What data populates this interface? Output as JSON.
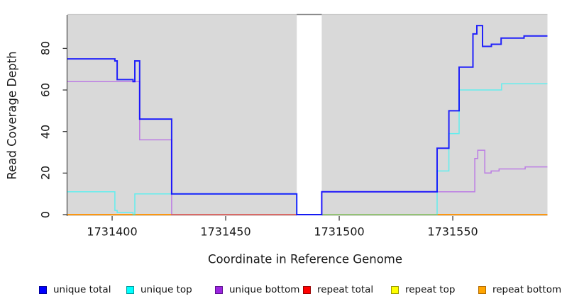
{
  "figure": {
    "x_axis_title": "Coordinate in Reference Genome",
    "y_axis_title": "Read Coverage Depth"
  },
  "chart_data": {
    "type": "line",
    "subtype": "step",
    "title": "",
    "xlabel": "Coordinate in Reference Genome",
    "ylabel": "Read Coverage Depth",
    "xlim": [
      1731380.3,
      1731591.7
    ],
    "ylim": [
      0,
      96.8
    ],
    "x_ticks": [
      1731400,
      1731450,
      1731500,
      1731550
    ],
    "y_ticks": [
      0,
      20,
      40,
      60,
      80
    ],
    "grid": false,
    "legend_position": "bottom",
    "panel_background": "#d9d9d9",
    "na_gap": {
      "x_start": 1731481.3,
      "x_end": 1731492.3,
      "fill": "#ffffff",
      "top_edge_color": "#8a8a8a"
    },
    "series": [
      {
        "name": "repeat total",
        "color": "#ff0000",
        "opacity": 0.7,
        "stroke_width": 1.3,
        "steps": [
          [
            1731380.3,
            0
          ]
        ]
      },
      {
        "name": "repeat top",
        "color": "#ffff00",
        "opacity": 0.85,
        "stroke_width": 1.3,
        "steps": [
          [
            1731380.3,
            0
          ]
        ]
      },
      {
        "name": "repeat bottom",
        "color": "#ff9100",
        "opacity": 1,
        "stroke_width": 1.7,
        "steps": [
          [
            1731380.3,
            0
          ]
        ]
      },
      {
        "name": "unique bottom",
        "color": "#a020f0",
        "opacity": 0.5,
        "stroke_width": 1.5,
        "steps": [
          [
            1731380.3,
            64
          ],
          [
            1731412.1,
            36
          ],
          [
            1731426.2,
            0
          ],
          [
            1731492.3,
            11
          ],
          [
            1731559.7,
            27
          ],
          [
            1731561.0,
            31
          ],
          [
            1731564.1,
            20
          ],
          [
            1731566.9,
            21
          ],
          [
            1731570.4,
            22
          ],
          [
            1731581.9,
            23
          ]
        ]
      },
      {
        "name": "unique top",
        "color": "#00ffff",
        "opacity": 0.55,
        "stroke_width": 1.5,
        "steps": [
          [
            1731380.3,
            11
          ],
          [
            1731401.2,
            2
          ],
          [
            1731402.2,
            1
          ],
          [
            1731409.2,
            0
          ],
          [
            1731410.0,
            10
          ],
          [
            1731481.3,
            0
          ],
          [
            1731543.1,
            21
          ],
          [
            1731548.3,
            39
          ],
          [
            1731552.8,
            60
          ],
          [
            1731571.5,
            63
          ]
        ]
      },
      {
        "name": "unique total",
        "color": "#0000ff",
        "opacity": 0.85,
        "stroke_width": 2,
        "steps": [
          [
            1731380.3,
            75
          ],
          [
            1731401.2,
            74
          ],
          [
            1731402.2,
            65
          ],
          [
            1731409.2,
            64
          ],
          [
            1731410.0,
            74
          ],
          [
            1731412.1,
            46
          ],
          [
            1731426.2,
            10
          ],
          [
            1731481.3,
            0
          ],
          [
            1731492.3,
            11
          ],
          [
            1731543.1,
            32
          ],
          [
            1731548.3,
            50
          ],
          [
            1731552.8,
            71
          ],
          [
            1731558.9,
            87
          ],
          [
            1731560.6,
            91
          ],
          [
            1731563.1,
            81
          ],
          [
            1731567.0,
            82
          ],
          [
            1731571.3,
            85
          ],
          [
            1731581.4,
            86
          ]
        ]
      }
    ]
  },
  "legend": {
    "items": [
      {
        "label": "unique total",
        "fill": "#0000ff",
        "border": "#000099"
      },
      {
        "label": "unique top",
        "fill": "#00ffff",
        "border": "#009999"
      },
      {
        "label": "unique bottom",
        "fill": "#9b25e0",
        "border": "#5d0f8f"
      },
      {
        "label": "repeat total",
        "fill": "#ff0000",
        "border": "#990000"
      },
      {
        "label": "repeat top",
        "fill": "#ffff00",
        "border": "#9a9a00"
      },
      {
        "label": "repeat bottom",
        "fill": "#ffa500",
        "border": "#b36b00"
      }
    ]
  }
}
